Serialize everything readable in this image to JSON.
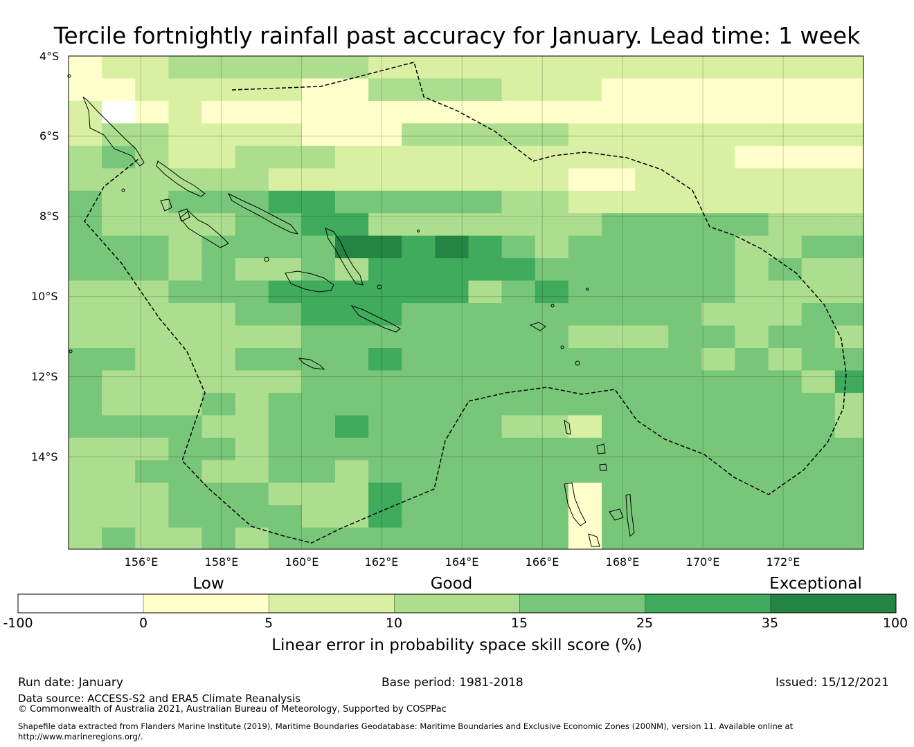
{
  "title": "Tercile fortnightly rainfall past accuracy for January. Lead time: 1 week",
  "map": {
    "lat_labels": [
      "4°S",
      "6°S",
      "8°S",
      "10°S",
      "12°S",
      "14°S"
    ],
    "lon_labels": [
      "156°E",
      "158°E",
      "160°E",
      "162°E",
      "164°E",
      "166°E",
      "168°E",
      "170°E",
      "172°E"
    ],
    "extent": {
      "lon_min": 154.2,
      "lon_max": 174.0,
      "lat_north": -4.0,
      "lat_south": -16.3
    },
    "cell_size_deg": {
      "lon": 0.83,
      "lat": 0.56
    },
    "grid_class_codes": [
      "1223333332222222222222222",
      "1122222113333222111111111",
      "2012111111111111111111111",
      "2332222111333332222222222",
      "3432233322222222222211111",
      "3333332222222221122222222",
      "4334445544444332222222222",
      "4333344553333333444443333",
      "4443444466565434444433444",
      "4443433435555544444434333",
      "3334445555553454444433334",
      "3333344555444444444333444",
      "3333333444444443334434433",
      "4433344445444444444343444",
      "4333333444444444444444353",
      "4333434444444444444444434",
      "4444334454444332444444433",
      "3334434444444444444444443",
      "3344334434444444444444444",
      "3334443335444441444444444",
      "3334444335444441444444444",
      "3433434444444441444444444",
      "3333333444444441334444444"
    ],
    "class_colors": [
      "#ffffff",
      "#ffffcc",
      "#d9f0a3",
      "#addd8e",
      "#78c679",
      "#41ab5d",
      "#238443"
    ]
  },
  "colorbar": {
    "category_labels": [
      "Low",
      "Good",
      "Exceptional"
    ],
    "ticks": [
      "-100",
      "0",
      "5",
      "10",
      "15",
      "25",
      "35",
      "100"
    ],
    "colors": [
      "#ffffff",
      "#ffffcc",
      "#d9f0a3",
      "#addd8e",
      "#78c679",
      "#41ab5d",
      "#238443"
    ],
    "label": "Linear error in probability space skill score (%)"
  },
  "footer": {
    "run_date": "Run date: January",
    "base_period": "Base period: 1981-2018",
    "issued": "Issued: 15/12/2021",
    "data_source": "Data source: ACCESS-S2 and ERA5 Climate Reanalysis",
    "copyright": "© Commonwealth of Australia 2021, Australian Bureau of Meteorology, Supported by COSPPac",
    "shapefile_line1": "Shapefile data extracted from Flanders Marine Institute (2019), Maritime Boundaries Geodatabase: Maritime Boundaries and Exclusive Economic Zones (200NM), version 11. Available online at",
    "shapefile_line2": "http://www.marineregions.org/."
  }
}
